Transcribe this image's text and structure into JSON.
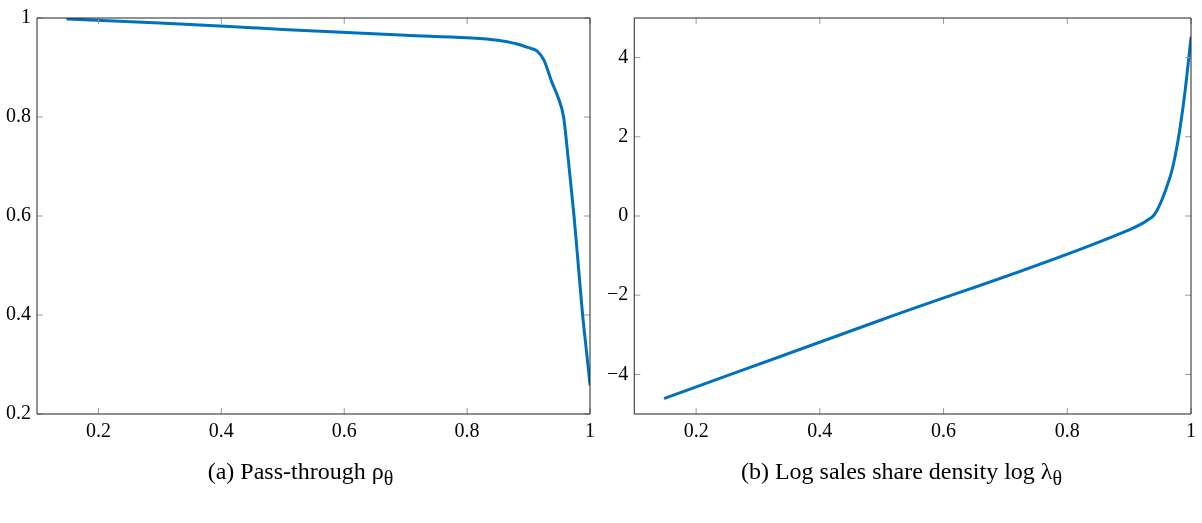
{
  "chart_data": [
    {
      "type": "line",
      "xlabel": "(a) Pass-through ρ$_{θ}$",
      "xlim": [
        0.1,
        1
      ],
      "xticks": [
        0.2,
        0.4,
        0.6,
        0.8,
        1
      ],
      "ylim": [
        0.2,
        1
      ],
      "yticks": [
        0.2,
        0.4,
        0.6,
        0.8,
        1
      ],
      "grid": false,
      "legend": false,
      "marker": "none",
      "line_style": "solid",
      "series": [
        {
          "color": "#0072bd",
          "x": [
            0.15,
            0.3,
            0.5,
            0.7,
            0.8,
            0.85,
            0.88,
            0.9,
            0.914,
            0.925,
            0.938,
            0.948,
            0.957,
            0.965,
            0.974,
            0.981,
            0.988,
            0.994,
            1
          ],
          "values": [
            0.998,
            0.99,
            0.977,
            0.965,
            0.96,
            0.955,
            0.948,
            0.94,
            0.933,
            0.915,
            0.87,
            0.84,
            0.8,
            0.71,
            0.6,
            0.5,
            0.4,
            0.33,
            0.26
          ]
        }
      ]
    },
    {
      "type": "line",
      "xlabel": "(b) Log sales share density log λ$_{θ}$",
      "xlim": [
        0.1,
        1
      ],
      "xticks": [
        0.2,
        0.4,
        0.6,
        0.8,
        1
      ],
      "ylim": [
        -5,
        5
      ],
      "yticks": [
        -4,
        -2,
        0,
        2,
        4
      ],
      "grid": false,
      "legend": false,
      "marker": "none",
      "line_style": "solid",
      "series": [
        {
          "color": "#0072bd",
          "x": [
            0.15,
            0.5,
            0.9,
            0.92,
            0.93,
            0.94,
            0.95,
            0.96,
            0.97,
            0.98,
            0.99,
            1
          ],
          "values": [
            -4.6,
            -2.62,
            -0.35,
            -0.2,
            -0.1,
            0.02,
            0.3,
            0.7,
            1.2,
            2.0,
            3.1,
            4.5
          ]
        }
      ]
    }
  ]
}
